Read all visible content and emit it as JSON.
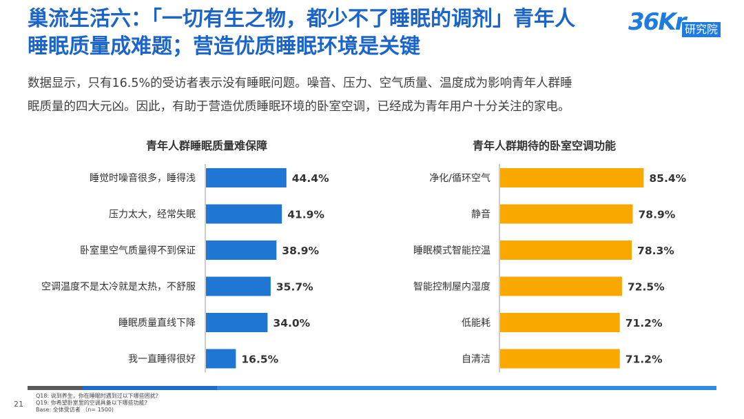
{
  "header": {
    "title_line1": "巢流生活六：「一切有生之物，都少不了睡眠的调剂」青年人",
    "title_line2": "睡眠质量成难题；营造优质睡眠环境是关键",
    "logo_mark": "36Kr",
    "logo_sub": "研究院"
  },
  "intro": {
    "line1": "数据显示，只有16.5%的受访者表示没有睡眠问题。噪音、压力、空气质量、温度成为影响青年人群睡",
    "line2": "眠质量的四大元凶。因此，有助于营造优质睡眠环境的卧室空调，已经成为青年用户十分关注的家电。"
  },
  "colors": {
    "title": "#1B64C9",
    "left_bar": "#1F77D3",
    "right_bar": "#F9A800"
  },
  "chart_data": [
    {
      "type": "bar",
      "orientation": "horizontal",
      "title": "青年人群睡眠质量难保障",
      "categories": [
        "睡觉时噪音很多，睡得浅",
        "压力太大，经常失眠",
        "卧室里空气质量得不到保证",
        "空调温度不是太冷就是太热，不舒服",
        "睡眠质量直线下降",
        "我一直睡得很好"
      ],
      "values": [
        44.4,
        41.9,
        38.9,
        35.7,
        34.0,
        16.5
      ],
      "labels": [
        "44.4%",
        "41.9%",
        "38.9%",
        "35.7%",
        "34.0%",
        "16.5%"
      ],
      "unit": "%",
      "color": "#1F77D3"
    },
    {
      "type": "bar",
      "orientation": "horizontal",
      "title": "青年人群期待的卧室空调功能",
      "categories": [
        "净化/循环空气",
        "静音",
        "睡眠模式智能控温",
        "智能控制屋内湿度",
        "低能耗",
        "自清洁"
      ],
      "values": [
        85.4,
        78.9,
        78.3,
        72.5,
        71.2,
        71.2
      ],
      "labels": [
        "85.4%",
        "78.9%",
        "78.3%",
        "72.5%",
        "71.2%",
        "71.2%"
      ],
      "unit": "%",
      "color": "#F9A800"
    }
  ],
  "footer": {
    "page_number": "21",
    "note_q18": "Q18: 说到养生，你在睡眠时遇到过以下哪些困扰?",
    "note_q19": "Q19: 你希望卧室里的空调具备以下哪些功能?",
    "note_base": "Base: 全体受访者 （n= 1500)"
  }
}
